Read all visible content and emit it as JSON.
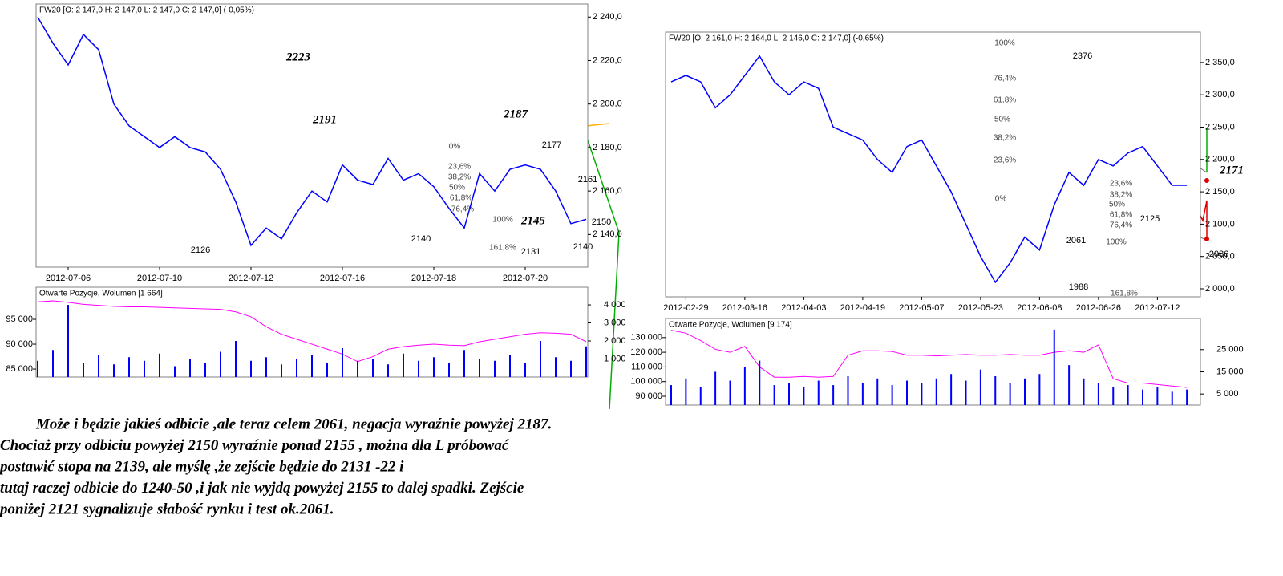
{
  "chart_data": [
    {
      "type": "line",
      "title": "FW20 [O: 2 147,0  H: 2 147,0  L: 2 147,0  C: 2 147,0] (-0,05%)",
      "categories": [
        null,
        null,
        "2012-07-06",
        null,
        null,
        null,
        null,
        null,
        "2012-07-10",
        null,
        null,
        null,
        null,
        null,
        "2012-07-12",
        null,
        null,
        null,
        null,
        null,
        "2012-07-16",
        null,
        null,
        null,
        null,
        null,
        "2012-07-18",
        null,
        null,
        null,
        null,
        null,
        "2012-07-20",
        null,
        null,
        null,
        null
      ],
      "series": [
        {
          "color": "#0000ff",
          "values": [
            2240,
            2228,
            2218,
            2232,
            2225,
            2200,
            2190,
            2185,
            2180,
            2185,
            2180,
            2178,
            2170,
            2155,
            2135,
            2143,
            2138,
            2150,
            2160,
            2155,
            2172,
            2165,
            2163,
            2175,
            2165,
            2168,
            2162,
            2152,
            2143,
            2168,
            2160,
            2170,
            2172,
            2170,
            2160,
            2145,
            2147
          ]
        }
      ],
      "ylim": [
        2125,
        2246
      ],
      "yticks": [
        {
          "value": 2140,
          "label": "2 140,0"
        },
        {
          "value": 2160,
          "label": "2 160,0"
        },
        {
          "value": 2180,
          "label": "2 180,0"
        },
        {
          "value": 2200,
          "label": "2 200,0"
        },
        {
          "value": 2220,
          "label": "2 220,0"
        },
        {
          "value": 2240,
          "label": "2 240,0"
        }
      ],
      "annotations": [
        "2223",
        "2191",
        "2187",
        "2177",
        "2161",
        "2150",
        "2140",
        "2145",
        "2140",
        "2131",
        "2126",
        "0%",
        "23,6%",
        "38,2%",
        "50%",
        "61,8%",
        "76,4%",
        "100%",
        "161,8%"
      ]
    },
    {
      "type": "bar",
      "title": "Otwarte Pozycje, Wolumen [1 664]",
      "series": [
        {
          "type": "line",
          "color": "#ff00ff",
          "values": [
            98500,
            98700,
            98400,
            98000,
            97800,
            97600,
            97500,
            97500,
            97400,
            97300,
            97200,
            97100,
            97000,
            96500,
            95500,
            93500,
            92000,
            91000,
            90000,
            89000,
            88000,
            86500,
            87500,
            89000,
            89500,
            89800,
            90000,
            89800,
            89700,
            90500,
            91000,
            91500,
            92000,
            92300,
            92200,
            92000,
            90500
          ]
        },
        {
          "type": "bar",
          "axis": "y2",
          "color": "#0000ff",
          "values": [
            900,
            1500,
            4000,
            800,
            1200,
            700,
            1100,
            900,
            1300,
            600,
            1000,
            800,
            1400,
            2000,
            900,
            1100,
            700,
            1000,
            1200,
            800,
            1600,
            900,
            1000,
            700,
            1300,
            900,
            1100,
            800,
            1500,
            1000,
            900,
            1200,
            800,
            2000,
            1100,
            900,
            1700
          ]
        }
      ],
      "ylim": [
        83400,
        101450
      ],
      "y2lim": [
        0,
        4980
      ],
      "yticks": [
        {
          "value": 85000,
          "label": "85 000"
        },
        {
          "value": 90000,
          "label": "90 000"
        },
        {
          "value": 95000,
          "label": "95 000"
        }
      ],
      "y2ticks": [
        {
          "value": 1000,
          "label": "1 000"
        },
        {
          "value": 2000,
          "label": "2 000"
        },
        {
          "value": 3000,
          "label": "3 000"
        },
        {
          "value": 4000,
          "label": "4 000"
        }
      ]
    },
    {
      "type": "line",
      "title": "FW20 [O: 2 161,0  H: 2 164,0  L: 2 146,0  C: 2 147,0] (-0,65%)",
      "categories": [
        null,
        "2012-02-29",
        null,
        null,
        null,
        "2012-03-16",
        null,
        null,
        null,
        "2012-04-03",
        null,
        null,
        null,
        "2012-04-19",
        null,
        null,
        null,
        "2012-05-07",
        null,
        null,
        null,
        "2012-05-23",
        null,
        null,
        null,
        "2012-06-08",
        null,
        null,
        null,
        "2012-06-26",
        null,
        null,
        null,
        "2012-07-12",
        null,
        null
      ],
      "series": [
        {
          "color": "#0000ff",
          "values": [
            2320,
            2330,
            2320,
            2280,
            2300,
            2330,
            2360,
            2320,
            2300,
            2320,
            2310,
            2250,
            2240,
            2230,
            2200,
            2180,
            2220,
            2230,
            2190,
            2150,
            2100,
            2050,
            2010,
            2040,
            2080,
            2060,
            2130,
            2180,
            2160,
            2200,
            2190,
            2210,
            2220,
            2190,
            2160,
            2160
          ]
        }
      ],
      "ylim": [
        1987.6,
        2397
      ],
      "yticks": [
        {
          "value": 2000,
          "label": "2 000,0"
        },
        {
          "value": 2050,
          "label": "2 050,0"
        },
        {
          "value": 2100,
          "label": "2 100,0"
        },
        {
          "value": 2150,
          "label": "2 150,0"
        },
        {
          "value": 2200,
          "label": "2 200,0"
        },
        {
          "value": 2250,
          "label": "2 250,0"
        },
        {
          "value": 2300,
          "label": "2 300,0"
        },
        {
          "value": 2350,
          "label": "2 350,0"
        }
      ],
      "annotations": [
        "2376",
        "100%",
        "76,4%",
        "61,8%",
        "50%",
        "38,2%",
        "23,6%",
        "0%",
        "2171",
        "2125",
        "2061",
        "2086",
        "1988",
        "161,8%",
        "23,6%",
        "38,2%",
        "50%",
        "61,8%",
        "76,4%",
        "100%"
      ]
    },
    {
      "type": "bar",
      "title": "Otwarte Pozycje, Wolumen [9 174]",
      "series": [
        {
          "type": "line",
          "color": "#ff00ff",
          "values": [
            135000,
            133000,
            128000,
            122000,
            120000,
            124000,
            110000,
            103000,
            103000,
            103500,
            103000,
            103500,
            118000,
            121000,
            121000,
            120500,
            118000,
            118000,
            117500,
            118000,
            118500,
            118000,
            118000,
            118500,
            118000,
            118000,
            120000,
            121000,
            120000,
            125000,
            102000,
            99000,
            99000,
            98000,
            97000,
            96000
          ]
        },
        {
          "type": "bar",
          "axis": "y2",
          "color": "#0000ff",
          "values": [
            9000,
            12000,
            8000,
            15000,
            11000,
            17000,
            20000,
            9000,
            10000,
            8000,
            11000,
            9000,
            13000,
            10000,
            12000,
            9000,
            11000,
            10000,
            12000,
            14000,
            11000,
            16000,
            13000,
            10000,
            12000,
            14000,
            34000,
            18000,
            12000,
            10000,
            8000,
            9000,
            7000,
            8000,
            6000,
            7000
          ]
        }
      ],
      "ylim": [
        84000,
        143000
      ],
      "y2lim": [
        0,
        39000
      ],
      "yticks": [
        {
          "value": 90000,
          "label": "90 000"
        },
        {
          "value": 100000,
          "label": "100 000"
        },
        {
          "value": 110000,
          "label": "110 000"
        },
        {
          "value": 120000,
          "label": "120 000"
        },
        {
          "value": 130000,
          "label": "130 000"
        }
      ],
      "y2ticks": [
        {
          "value": 5000,
          "label": "5 000"
        },
        {
          "value": 15000,
          "label": "15 000"
        },
        {
          "value": 25000,
          "label": "25 000"
        }
      ]
    }
  ],
  "text": [
    "Może i będzie jakieś odbicie ,ale  teraz celem 2061, negacja wyraźnie powyżej 2187.",
    "Chociaż  przy odbiciu powyżej 2150  wyraźnie ponad 2155 , można dla L próbować",
    "postawić stopa na 2139, ale myślę ,że zejście będzie do 2131 -22 i",
    "tutaj raczej  odbicie do 1240-50 ,i  jak nie wyjdą powyżej  2155 to dalej spadki. Zejście",
    "poniżej 2121 sygnalizuje słabość rynku i test ok.2061."
  ]
}
